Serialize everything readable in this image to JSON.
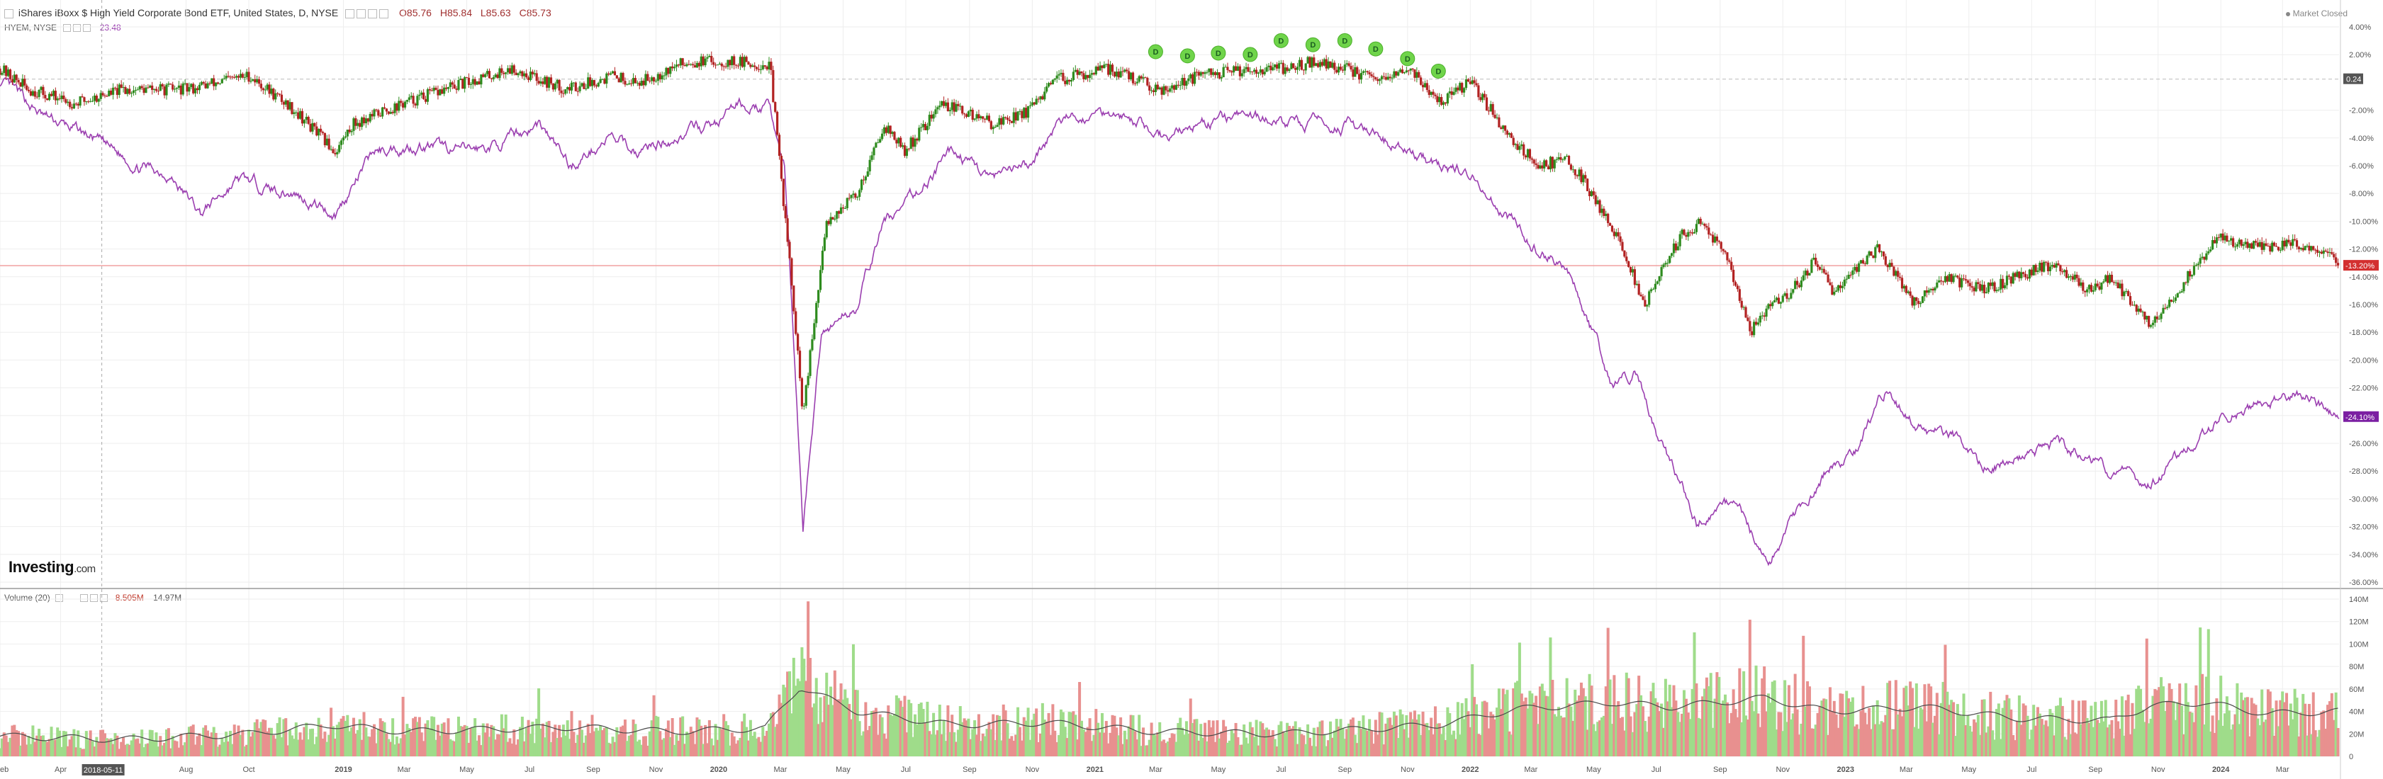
{
  "header": {
    "title": "iShares iBoxx $ High Yield Corporate Bond ETF, United States, D, NYSE",
    "open": "O85.76",
    "high": "H85.84",
    "low": "L85.63",
    "close": "C85.73",
    "compare_symbol": "HYEM, NYSE",
    "compare_value": "23.48",
    "market_status": "Market Closed"
  },
  "volume_panel": {
    "label": "Volume (20)",
    "value1": "8.505M",
    "value2": "14.97M"
  },
  "branding": {
    "logo_main": "Investing",
    "logo_suffix": ".com"
  },
  "colors": {
    "up": "#2e8b1e",
    "down": "#b22222",
    "compare": "#9b3fb0",
    "vol_up": "#9fdc8a",
    "vol_down": "#e8908f",
    "dividend": "#6fd44a",
    "hline": "#f0a0a0",
    "last_bg": "#d32f2f",
    "compare_bg": "#7b1fa2"
  },
  "chart_data": {
    "type": "line",
    "title": "iShares iBoxx $ High Yield Corporate Bond ETF, United States, D, NYSE",
    "xlabel": "",
    "ylabel": "",
    "y_unit": "%",
    "ylim": [
      -36,
      4
    ],
    "yticks": [
      4,
      2,
      -2,
      -4,
      -6,
      -8,
      -10,
      -12,
      -14,
      -16,
      -18,
      -20,
      -22,
      -24,
      -26,
      -28,
      -30,
      -32,
      -34,
      -36
    ],
    "xlim": [
      "2018-02-01",
      "2024-04-25"
    ],
    "xticks": [
      {
        "date": "2018-02-01",
        "label": "eb"
      },
      {
        "date": "2018-04-01",
        "label": "Apr"
      },
      {
        "date": "2018-08-01",
        "label": "Aug"
      },
      {
        "date": "2018-10-01",
        "label": "Oct"
      },
      {
        "date": "2019-01-01",
        "label": "2019"
      },
      {
        "date": "2019-03-01",
        "label": "Mar"
      },
      {
        "date": "2019-05-01",
        "label": "May"
      },
      {
        "date": "2019-07-01",
        "label": "Jul"
      },
      {
        "date": "2019-09-01",
        "label": "Sep"
      },
      {
        "date": "2019-11-01",
        "label": "Nov"
      },
      {
        "date": "2020-01-01",
        "label": "2020"
      },
      {
        "date": "2020-03-01",
        "label": "Mar"
      },
      {
        "date": "2020-05-01",
        "label": "May"
      },
      {
        "date": "2020-07-01",
        "label": "Jul"
      },
      {
        "date": "2020-09-01",
        "label": "Sep"
      },
      {
        "date": "2020-11-01",
        "label": "Nov"
      },
      {
        "date": "2021-01-01",
        "label": "2021"
      },
      {
        "date": "2021-03-01",
        "label": "Mar"
      },
      {
        "date": "2021-05-01",
        "label": "May"
      },
      {
        "date": "2021-07-01",
        "label": "Jul"
      },
      {
        "date": "2021-09-01",
        "label": "Sep"
      },
      {
        "date": "2021-11-01",
        "label": "Nov"
      },
      {
        "date": "2022-01-01",
        "label": "2022"
      },
      {
        "date": "2022-03-01",
        "label": "Mar"
      },
      {
        "date": "2022-05-01",
        "label": "May"
      },
      {
        "date": "2022-07-01",
        "label": "Jul"
      },
      {
        "date": "2022-09-01",
        "label": "Sep"
      },
      {
        "date": "2022-11-01",
        "label": "Nov"
      },
      {
        "date": "2023-01-01",
        "label": "2023"
      },
      {
        "date": "2023-03-01",
        "label": "Mar"
      },
      {
        "date": "2023-05-01",
        "label": "May"
      },
      {
        "date": "2023-07-01",
        "label": "Jul"
      },
      {
        "date": "2023-09-01",
        "label": "Sep"
      },
      {
        "date": "2023-11-01",
        "label": "Nov"
      },
      {
        "date": "2024-01-01",
        "label": "2024"
      },
      {
        "date": "2024-03-01",
        "label": "Mar"
      }
    ],
    "crosshair_date": "2018-05-11",
    "crosshair_label": "2018-05-11",
    "reference_line": {
      "value": 0.24,
      "label": "0.24"
    },
    "last_value": {
      "value": -13.2,
      "label": "-13.20%"
    },
    "compare_last": {
      "value": -24.1,
      "label": "-24.10%"
    },
    "series": [
      {
        "type": "candlestick",
        "points": [
          [
            "2018-02-01",
            1
          ],
          [
            "2018-03-01",
            -0.5
          ],
          [
            "2018-04-15",
            -1.5
          ],
          [
            "2018-06-01",
            -0.5
          ],
          [
            "2018-08-01",
            -0.5
          ],
          [
            "2018-10-01",
            0.5
          ],
          [
            "2018-11-15",
            -2
          ],
          [
            "2018-12-24",
            -5
          ],
          [
            "2019-01-10",
            -3
          ],
          [
            "2019-03-01",
            -1.5
          ],
          [
            "2019-05-01",
            0
          ],
          [
            "2019-06-15",
            1
          ],
          [
            "2019-08-05",
            -0.5
          ],
          [
            "2019-09-20",
            0.5
          ],
          [
            "2019-10-15",
            0
          ],
          [
            "2019-12-01",
            1.5
          ],
          [
            "2020-01-15",
            1.5
          ],
          [
            "2020-02-20",
            1.2
          ],
          [
            "2020-03-10",
            -13
          ],
          [
            "2020-03-23",
            -24
          ],
          [
            "2020-04-15",
            -10
          ],
          [
            "2020-05-15",
            -8
          ],
          [
            "2020-06-10",
            -3
          ],
          [
            "2020-06-30",
            -5
          ],
          [
            "2020-08-05",
            -1.5
          ],
          [
            "2020-09-25",
            -3
          ],
          [
            "2020-10-30",
            -2
          ],
          [
            "2020-11-25",
            0.2
          ],
          [
            "2021-01-15",
            1
          ],
          [
            "2021-03-05",
            -0.5
          ],
          [
            "2021-04-15",
            0.5
          ],
          [
            "2021-06-01",
            1
          ],
          [
            "2021-07-10",
            1
          ],
          [
            "2021-08-01",
            1.5
          ],
          [
            "2021-09-01",
            1
          ],
          [
            "2021-10-05",
            0
          ],
          [
            "2021-11-05",
            1
          ],
          [
            "2021-11-30",
            -1.5
          ],
          [
            "2022-01-01",
            0
          ],
          [
            "2022-02-10",
            -4
          ],
          [
            "2022-03-08",
            -6
          ],
          [
            "2022-04-05",
            -5.5
          ],
          [
            "2022-04-20",
            -7
          ],
          [
            "2022-05-20",
            -10.5
          ],
          [
            "2022-06-20",
            -16
          ],
          [
            "2022-07-25",
            -11
          ],
          [
            "2022-08-15",
            -10
          ],
          [
            "2022-09-10",
            -13
          ],
          [
            "2022-09-30",
            -18
          ],
          [
            "2022-10-20",
            -16
          ],
          [
            "2022-11-10",
            -15
          ],
          [
            "2022-12-01",
            -13
          ],
          [
            "2022-12-20",
            -15
          ],
          [
            "2023-01-15",
            -13
          ],
          [
            "2023-02-02",
            -12
          ],
          [
            "2023-03-10",
            -16
          ],
          [
            "2023-04-10",
            -14
          ],
          [
            "2023-05-15",
            -15
          ],
          [
            "2023-06-15",
            -14
          ],
          [
            "2023-07-25",
            -13
          ],
          [
            "2023-08-25",
            -15
          ],
          [
            "2023-09-15",
            -14
          ],
          [
            "2023-10-25",
            -17.5
          ],
          [
            "2023-11-20",
            -15
          ],
          [
            "2023-12-31",
            -11
          ],
          [
            "2024-01-15",
            -11.5
          ],
          [
            "2024-02-15",
            -12
          ],
          [
            "2024-03-05",
            -11.5
          ],
          [
            "2024-04-10",
            -12
          ],
          [
            "2024-04-25",
            -13.2
          ]
        ]
      },
      {
        "name": "HYEM, NYSE",
        "type": "line",
        "points": [
          [
            "2018-02-01",
            0
          ],
          [
            "2018-03-15",
            -2.5
          ],
          [
            "2018-05-01",
            -4
          ],
          [
            "2018-06-15",
            -6
          ],
          [
            "2018-07-15",
            -6.5
          ],
          [
            "2018-08-15",
            -9.5
          ],
          [
            "2018-09-20",
            -7
          ],
          [
            "2018-10-15",
            -7.5
          ],
          [
            "2018-11-15",
            -8
          ],
          [
            "2018-12-24",
            -9.5
          ],
          [
            "2019-01-31",
            -5
          ],
          [
            "2019-03-15",
            -4.5
          ],
          [
            "2019-05-01",
            -5
          ],
          [
            "2019-06-01",
            -4.5
          ],
          [
            "2019-07-10",
            -3
          ],
          [
            "2019-08-10",
            -6
          ],
          [
            "2019-09-15",
            -4
          ],
          [
            "2019-10-15",
            -5
          ],
          [
            "2019-11-15",
            -4
          ],
          [
            "2019-12-31",
            -3
          ],
          [
            "2020-01-20",
            -1.5
          ],
          [
            "2020-02-20",
            -2
          ],
          [
            "2020-03-05",
            -6
          ],
          [
            "2020-03-23",
            -32
          ],
          [
            "2020-04-10",
            -18
          ],
          [
            "2020-05-15",
            -16
          ],
          [
            "2020-06-10",
            -10
          ],
          [
            "2020-06-30",
            -9
          ],
          [
            "2020-08-15",
            -5
          ],
          [
            "2020-09-25",
            -7
          ],
          [
            "2020-10-30",
            -6
          ],
          [
            "2020-11-25",
            -3
          ],
          [
            "2021-01-20",
            -2
          ],
          [
            "2021-03-10",
            -4
          ],
          [
            "2021-04-10",
            -3
          ],
          [
            "2021-06-01",
            -2.5
          ],
          [
            "2021-07-10",
            -3
          ],
          [
            "2021-09-01",
            -3
          ],
          [
            "2021-10-15",
            -4.5
          ],
          [
            "2021-11-30",
            -6
          ],
          [
            "2022-01-01",
            -6.5
          ],
          [
            "2022-02-10",
            -10
          ],
          [
            "2022-03-08",
            -12
          ],
          [
            "2022-04-05",
            -13
          ],
          [
            "2022-05-20",
            -22
          ],
          [
            "2022-06-10",
            -21
          ],
          [
            "2022-07-05",
            -26
          ],
          [
            "2022-07-25",
            -29
          ],
          [
            "2022-08-10",
            -32
          ],
          [
            "2022-09-01",
            -30
          ],
          [
            "2022-09-20",
            -31
          ],
          [
            "2022-10-20",
            -34.5
          ],
          [
            "2022-11-15",
            -31
          ],
          [
            "2022-12-15",
            -28
          ],
          [
            "2023-01-15",
            -26
          ],
          [
            "2023-02-10",
            -22
          ],
          [
            "2023-03-10",
            -25
          ],
          [
            "2023-04-15",
            -25.5
          ],
          [
            "2023-05-15",
            -28
          ],
          [
            "2023-06-15",
            -27
          ],
          [
            "2023-07-25",
            -26
          ],
          [
            "2023-08-25",
            -27
          ],
          [
            "2023-09-20",
            -28
          ],
          [
            "2023-10-25",
            -29
          ],
          [
            "2023-11-20",
            -27
          ],
          [
            "2023-12-31",
            -24
          ],
          [
            "2024-01-31",
            -23.5
          ],
          [
            "2024-03-05",
            -22.5
          ],
          [
            "2024-03-25",
            -22.8
          ],
          [
            "2024-04-25",
            -24.1
          ]
        ]
      }
    ],
    "dividends": [
      {
        "date": "2021-03-01",
        "value": 1.5
      },
      {
        "date": "2021-04-01",
        "value": 1.2
      },
      {
        "date": "2021-05-01",
        "value": 1.4
      },
      {
        "date": "2021-06-01",
        "value": 1.3
      },
      {
        "date": "2021-07-01",
        "value": 2.3
      },
      {
        "date": "2021-08-01",
        "value": 2.0
      },
      {
        "date": "2021-09-01",
        "value": 2.3
      },
      {
        "date": "2021-10-01",
        "value": 1.7
      },
      {
        "date": "2021-11-01",
        "value": 1.0
      },
      {
        "date": "2021-12-01",
        "value": 0.1
      }
    ],
    "dividend_label": "D",
    "volume": {
      "ylim": [
        0,
        140
      ],
      "y_unit": "M",
      "yticks": [
        0,
        20,
        40,
        60,
        80,
        100,
        120,
        140
      ],
      "ytick_labels": [
        "0",
        "20M",
        "40M",
        "60M",
        "80M",
        "100M",
        "120M",
        "140M"
      ],
      "avg_levels": [
        [
          "2018-02-01",
          18
        ],
        [
          "2018-06-01",
          15
        ],
        [
          "2018-10-01",
          20
        ],
        [
          "2018-12-20",
          28
        ],
        [
          "2019-03-01",
          22
        ],
        [
          "2019-08-10",
          26
        ],
        [
          "2019-11-15",
          22
        ],
        [
          "2020-02-15",
          25
        ],
        [
          "2020-03-20",
          62
        ],
        [
          "2020-05-15",
          40
        ],
        [
          "2020-08-15",
          28
        ],
        [
          "2020-11-15",
          30
        ],
        [
          "2021-03-01",
          22
        ],
        [
          "2021-07-01",
          20
        ],
        [
          "2021-11-30",
          28
        ],
        [
          "2022-02-15",
          42
        ],
        [
          "2022-05-20",
          48
        ],
        [
          "2022-07-15",
          44
        ],
        [
          "2022-10-15",
          52
        ],
        [
          "2022-12-15",
          40
        ],
        [
          "2023-03-15",
          44
        ],
        [
          "2023-06-15",
          34
        ],
        [
          "2023-09-15",
          32
        ],
        [
          "2023-10-25",
          45
        ],
        [
          "2023-12-15",
          48
        ],
        [
          "2024-02-15",
          38
        ],
        [
          "2024-04-25",
          40
        ]
      ]
    }
  }
}
